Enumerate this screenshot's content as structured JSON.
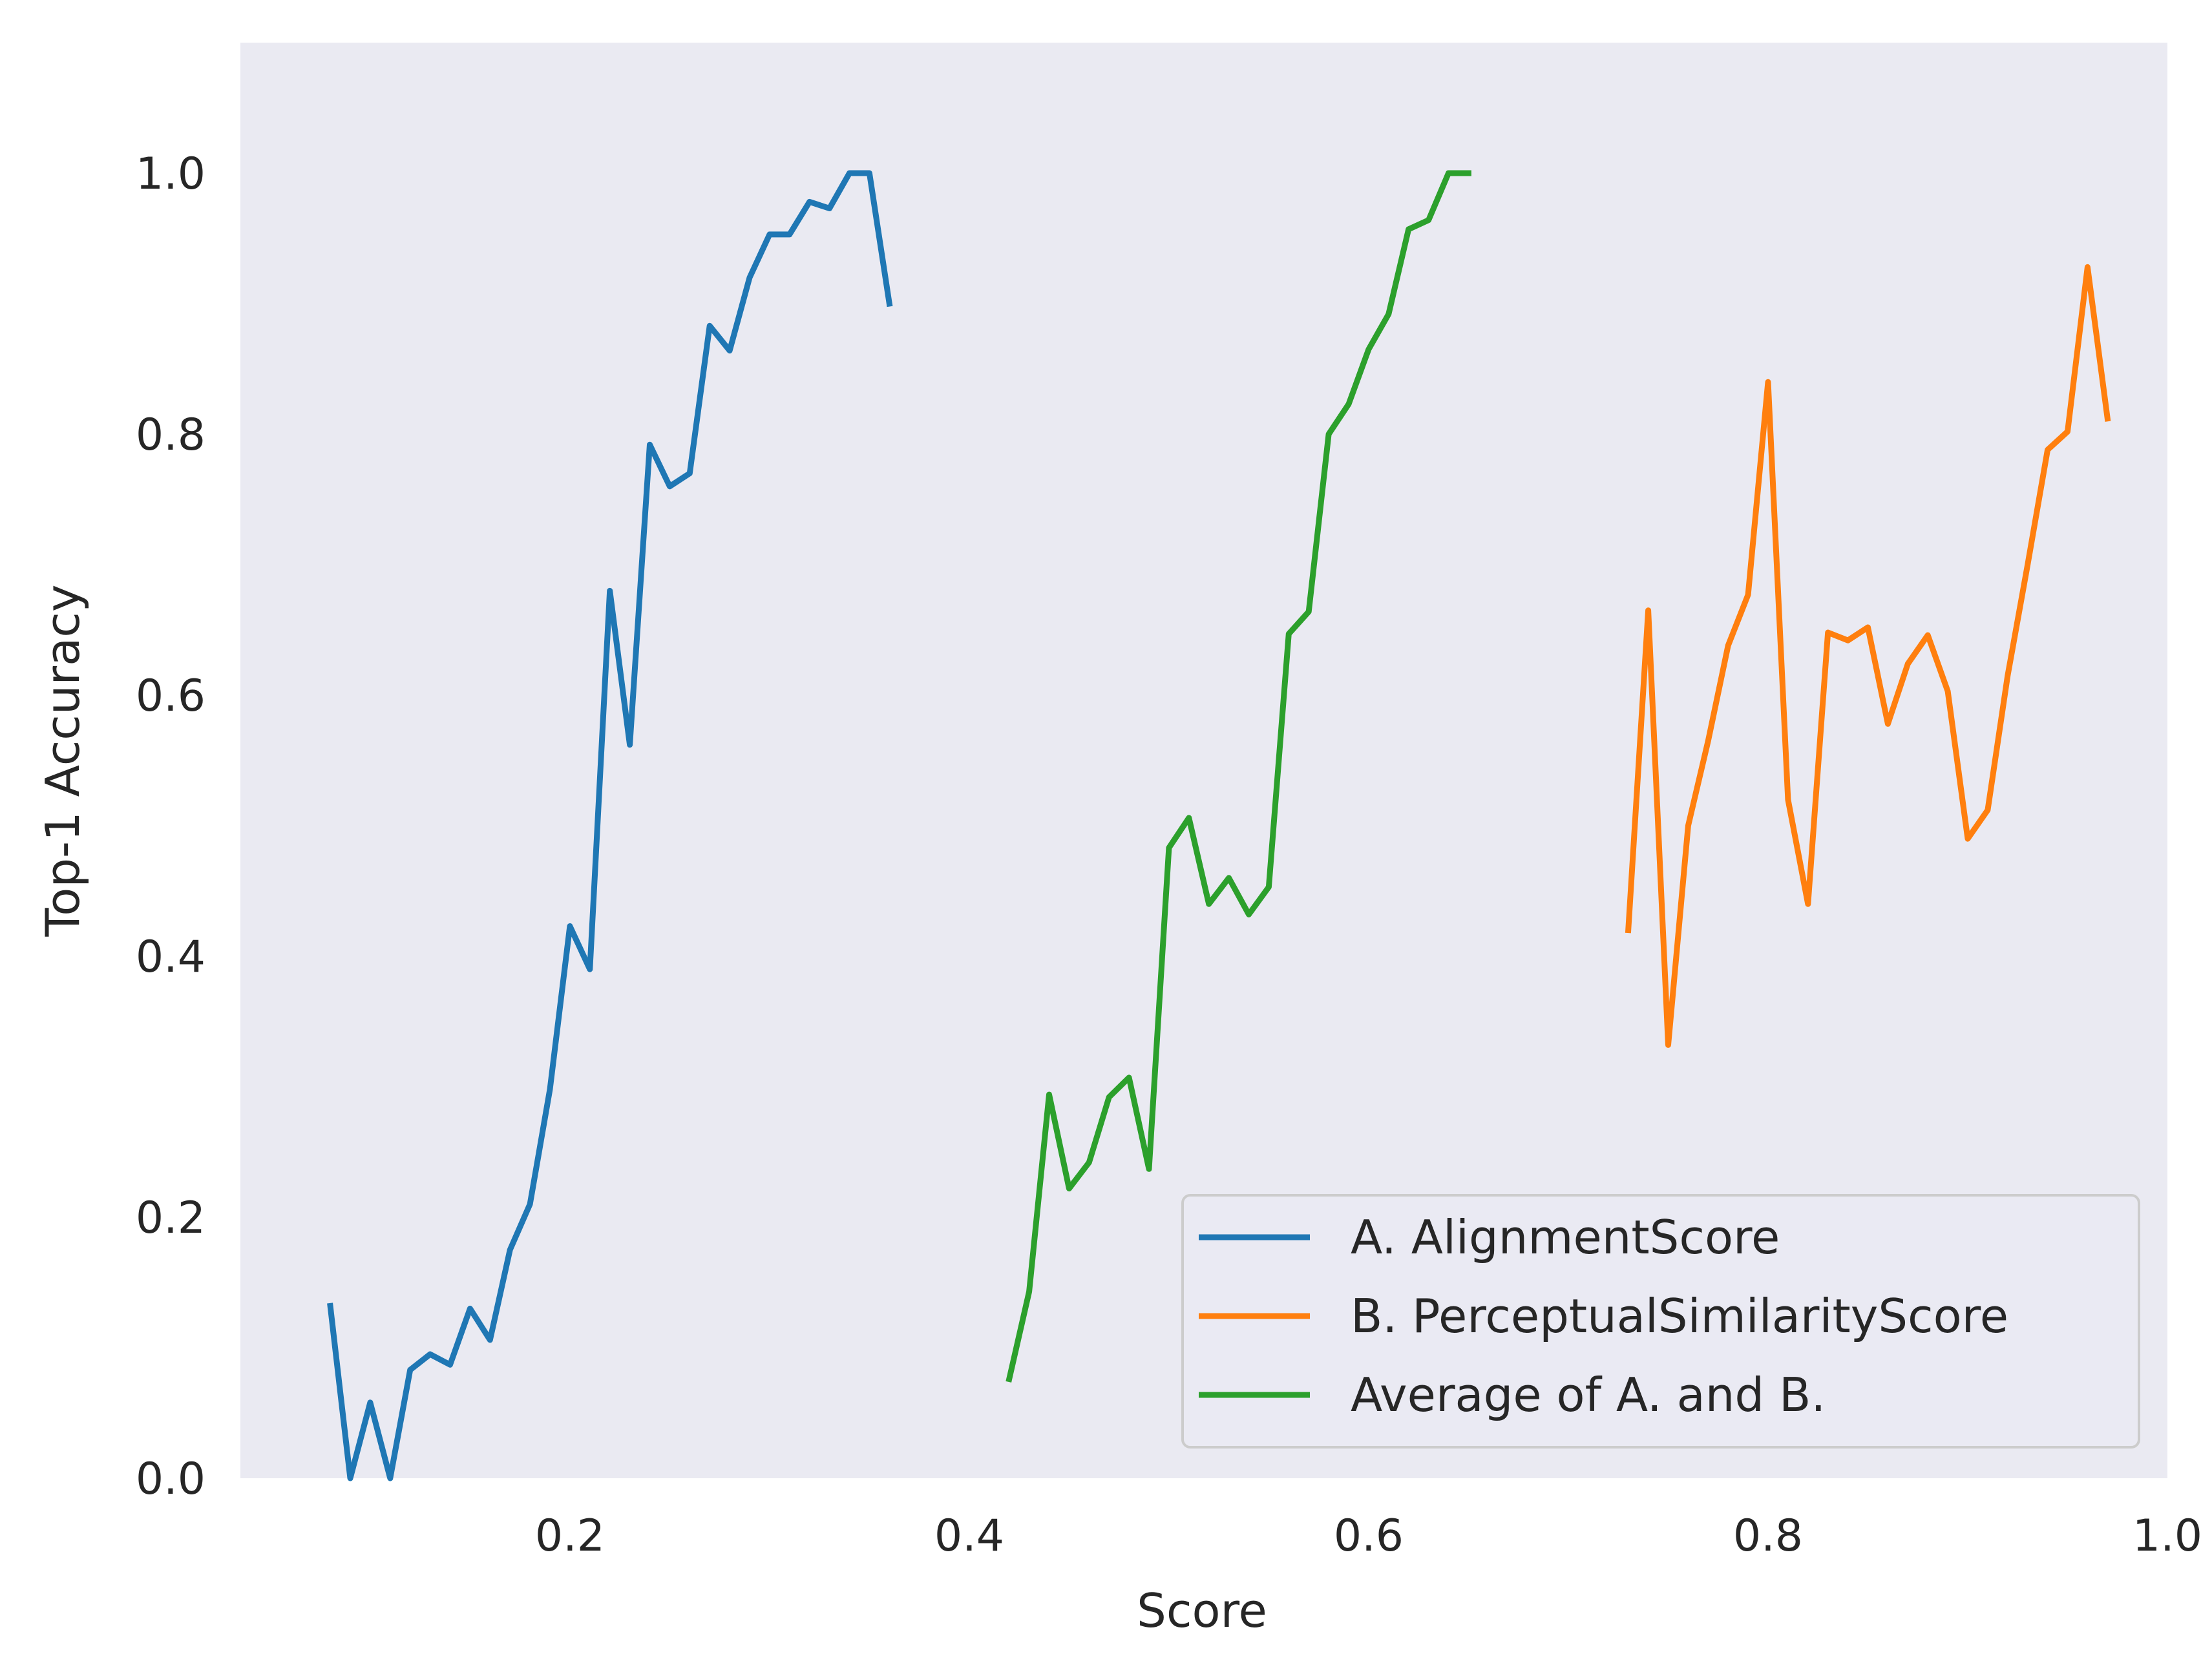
{
  "chart_data": {
    "type": "line",
    "title": "",
    "xlabel": "Score",
    "ylabel": "Top-1 Accuracy",
    "xlim": [
      0.035,
      1.0
    ],
    "ylim": [
      0.0,
      1.1
    ],
    "xticks": [
      0.2,
      0.4,
      0.6,
      0.8,
      1.0
    ],
    "yticks": [
      0.0,
      0.2,
      0.4,
      0.6,
      0.8,
      1.0
    ],
    "xtick_labels": [
      "0.2",
      "0.4",
      "0.6",
      "0.8",
      "1.0"
    ],
    "ytick_labels": [
      "0.0",
      "0.2",
      "0.4",
      "0.6",
      "0.8",
      "1.0"
    ],
    "grid": false,
    "background": "#eaeaf2",
    "legend_position": "lower-right",
    "series": [
      {
        "name": "A. AlignmentScore",
        "color": "#1f77b4",
        "x": [
          0.08,
          0.09,
          0.1,
          0.11,
          0.12,
          0.13,
          0.14,
          0.15,
          0.16,
          0.17,
          0.18,
          0.19,
          0.2,
          0.21,
          0.22,
          0.23,
          0.24,
          0.25,
          0.26,
          0.27,
          0.28,
          0.29,
          0.3,
          0.31,
          0.32,
          0.33,
          0.34,
          0.35,
          0.36
        ],
        "y": [
          0.132,
          0.0,
          0.058,
          0.0,
          0.083,
          0.095,
          0.087,
          0.13,
          0.106,
          0.175,
          0.21,
          0.298,
          0.423,
          0.39,
          0.68,
          0.562,
          0.792,
          0.76,
          0.77,
          0.883,
          0.864,
          0.92,
          0.953,
          0.953,
          0.978,
          0.973,
          1.0,
          1.0,
          0.9
        ]
      },
      {
        "name": "B. PerceptualSimilarityScore",
        "color": "#ff7f0e",
        "x": [
          0.73,
          0.74,
          0.75,
          0.76,
          0.77,
          0.78,
          0.79,
          0.8,
          0.81,
          0.82,
          0.83,
          0.84,
          0.85,
          0.86,
          0.87,
          0.88,
          0.89,
          0.9,
          0.91,
          0.92,
          0.93,
          0.94,
          0.95,
          0.96,
          0.97
        ],
        "y": [
          0.42,
          0.665,
          0.332,
          0.5,
          0.565,
          0.638,
          0.677,
          0.84,
          0.52,
          0.44,
          0.648,
          0.642,
          0.652,
          0.578,
          0.624,
          0.646,
          0.603,
          0.49,
          0.512,
          0.615,
          0.7,
          0.788,
          0.802,
          0.928,
          0.812
        ]
      },
      {
        "name": "Average of A. and B.",
        "color": "#2ca02c",
        "x": [
          0.42,
          0.43,
          0.44,
          0.45,
          0.46,
          0.47,
          0.48,
          0.49,
          0.5,
          0.51,
          0.52,
          0.53,
          0.54,
          0.55,
          0.56,
          0.57,
          0.58,
          0.59,
          0.6,
          0.61,
          0.62,
          0.63,
          0.64,
          0.65
        ],
        "y": [
          0.076,
          0.143,
          0.294,
          0.222,
          0.242,
          0.292,
          0.307,
          0.237,
          0.483,
          0.506,
          0.44,
          0.46,
          0.432,
          0.453,
          0.647,
          0.664,
          0.8,
          0.823,
          0.865,
          0.892,
          0.957,
          0.964,
          1.0,
          1.0
        ]
      }
    ]
  }
}
